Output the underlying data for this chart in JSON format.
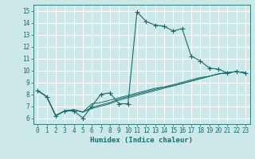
{
  "xlabel": "Humidex (Indice chaleur)",
  "bg_color": "#cce8e8",
  "grid_color": "#ffffff",
  "line_color": "#1a6b6b",
  "xlim": [
    -0.5,
    23.5
  ],
  "ylim": [
    5.5,
    15.5
  ],
  "xticks": [
    0,
    1,
    2,
    3,
    4,
    5,
    6,
    7,
    8,
    9,
    10,
    11,
    12,
    13,
    14,
    15,
    16,
    17,
    18,
    19,
    20,
    21,
    22,
    23
  ],
  "yticks": [
    6,
    7,
    8,
    9,
    10,
    11,
    12,
    13,
    14,
    15
  ],
  "series": [
    [
      8.3,
      7.8,
      6.2,
      6.6,
      6.6,
      6.0,
      7.0,
      8.0,
      8.1,
      7.2,
      7.2,
      14.9,
      14.1,
      13.8,
      13.7,
      13.3,
      13.5,
      11.2,
      10.8,
      10.2,
      10.1,
      9.8,
      9.9,
      9.8
    ],
    [
      8.3,
      7.8,
      6.2,
      6.6,
      6.7,
      6.5,
      7.2,
      7.3,
      7.5,
      7.7,
      7.9,
      8.1,
      8.3,
      8.5,
      8.6,
      8.8,
      9.0,
      9.2,
      9.4,
      9.5,
      9.7,
      9.8,
      9.9,
      9.8
    ],
    [
      8.3,
      7.8,
      6.2,
      6.6,
      6.7,
      6.5,
      6.9,
      7.1,
      7.3,
      7.6,
      7.8,
      8.0,
      8.2,
      8.4,
      8.6,
      8.7,
      8.9,
      9.1,
      9.3,
      9.5,
      9.7,
      9.8,
      9.9,
      9.8
    ],
    [
      8.3,
      7.8,
      6.2,
      6.6,
      6.7,
      6.5,
      6.8,
      7.0,
      7.2,
      7.5,
      7.7,
      7.9,
      8.1,
      8.3,
      8.5,
      8.7,
      8.9,
      9.1,
      9.3,
      9.5,
      9.7,
      9.8,
      9.9,
      9.8
    ]
  ],
  "marker": "+",
  "markersize": 4,
  "tick_fontsize": 5.5,
  "xlabel_fontsize": 6.5
}
